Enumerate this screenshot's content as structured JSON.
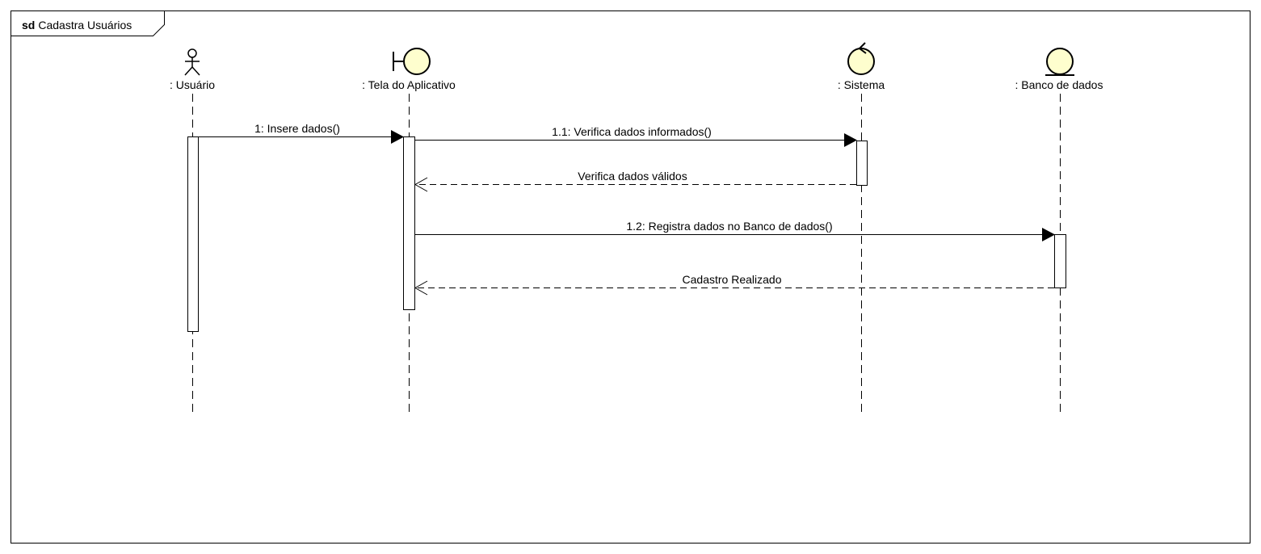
{
  "frame": {
    "keyword": "sd",
    "title": "Cadastra Usuários"
  },
  "colors": {
    "stereotype_fill": "#fefece",
    "stroke": "#000000",
    "background": "#ffffff"
  },
  "participants": [
    {
      "kind": "actor",
      "icon": "actor-icon",
      "label": ": Usuário"
    },
    {
      "kind": "boundary",
      "icon": "boundary-icon",
      "label": ": Tela do Aplicativo"
    },
    {
      "kind": "control",
      "icon": "control-icon",
      "label": ": Sistema"
    },
    {
      "kind": "entity",
      "icon": "entity-icon",
      "label": ": Banco de dados"
    }
  ],
  "messages": [
    {
      "from": 0,
      "to": 1,
      "type": "sync",
      "label": "1: Insere dados()"
    },
    {
      "from": 1,
      "to": 2,
      "type": "sync",
      "label": "1.1: Verifica dados informados()"
    },
    {
      "from": 2,
      "to": 1,
      "type": "reply",
      "label": "Verifica dados válidos"
    },
    {
      "from": 1,
      "to": 3,
      "type": "sync",
      "label": "1.2: Registra dados no Banco de dados()"
    },
    {
      "from": 3,
      "to": 1,
      "type": "reply",
      "label": "Cadastro Realizado"
    }
  ]
}
